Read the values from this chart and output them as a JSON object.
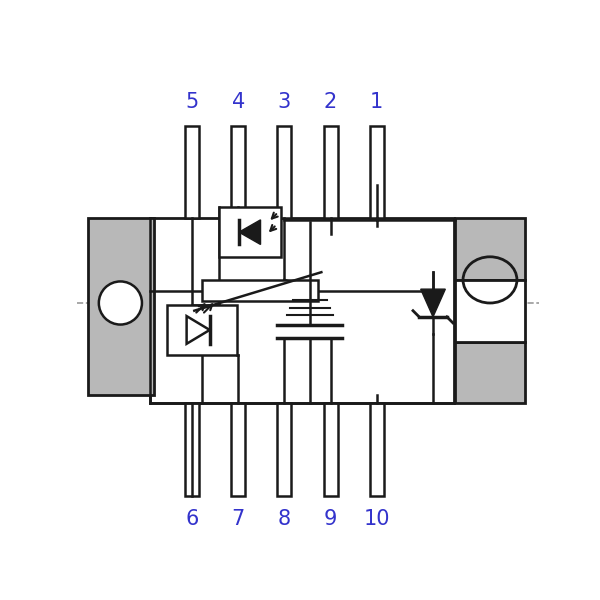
{
  "bg_color": "#ffffff",
  "line_color": "#1a1a1a",
  "gray_color": "#b8b8b8",
  "dash_color": "#999999",
  "label_color": "#3333cc",
  "pin_labels_top": [
    "5",
    "4",
    "3",
    "2",
    "1"
  ],
  "pin_labels_bottom": [
    "6",
    "7",
    "8",
    "9",
    "10"
  ],
  "figsize": [
    6.0,
    6.0
  ],
  "dpi": 100
}
